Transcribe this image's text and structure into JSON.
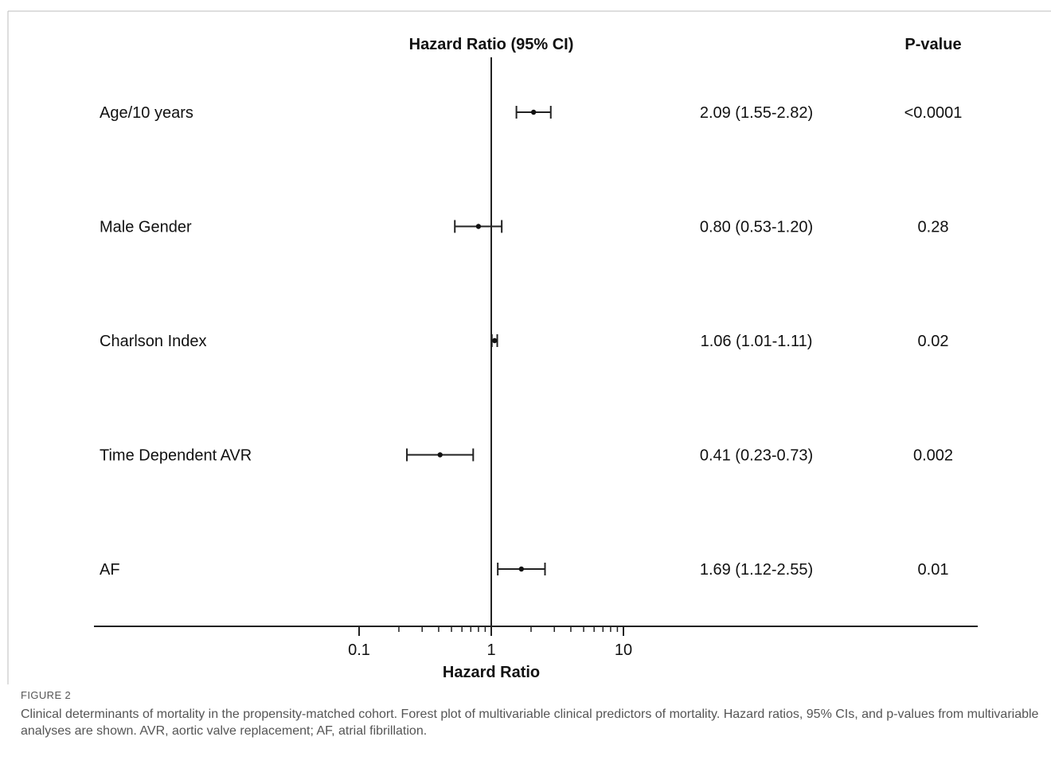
{
  "chart_data": {
    "type": "forest",
    "headers": {
      "estimate": "Hazard Ratio (95% CI)",
      "pvalue": "P-value"
    },
    "xlabel": "Hazard Ratio",
    "xscale": "log",
    "xlim": [
      0.01,
      1000
    ],
    "ticks": [
      0.1,
      1,
      10
    ],
    "tick_labels": [
      "0.1",
      "1",
      "10"
    ],
    "reference_line": 1,
    "rows": [
      {
        "label": "Age/10 years",
        "hr": 2.09,
        "lo": 1.55,
        "hi": 2.82,
        "text": "2.09 (1.55-2.82)",
        "p": "<0.0001"
      },
      {
        "label": "Male Gender",
        "hr": 0.8,
        "lo": 0.53,
        "hi": 1.2,
        "text": "0.80 (0.53-1.20)",
        "p": "0.28"
      },
      {
        "label": "Charlson Index",
        "hr": 1.06,
        "lo": 1.01,
        "hi": 1.11,
        "text": "1.06 (1.01-1.11)",
        "p": "0.02"
      },
      {
        "label": "Time Dependent AVR",
        "hr": 0.41,
        "lo": 0.23,
        "hi": 0.73,
        "text": "0.41 (0.23-0.73)",
        "p": "0.002"
      },
      {
        "label": "AF",
        "hr": 1.69,
        "lo": 1.12,
        "hi": 2.55,
        "text": "1.69 (1.12-2.55)",
        "p": "0.01"
      }
    ]
  },
  "caption": {
    "figure_label": "FIGURE 2",
    "text": "Clinical determinants of mortality in the propensity-matched cohort. Forest plot of multivariable clinical predictors of mortality. Hazard ratios, 95% CIs, and p-values from multivariable analyses are shown. AVR, aortic valve replacement; AF, atrial fibrillation."
  }
}
